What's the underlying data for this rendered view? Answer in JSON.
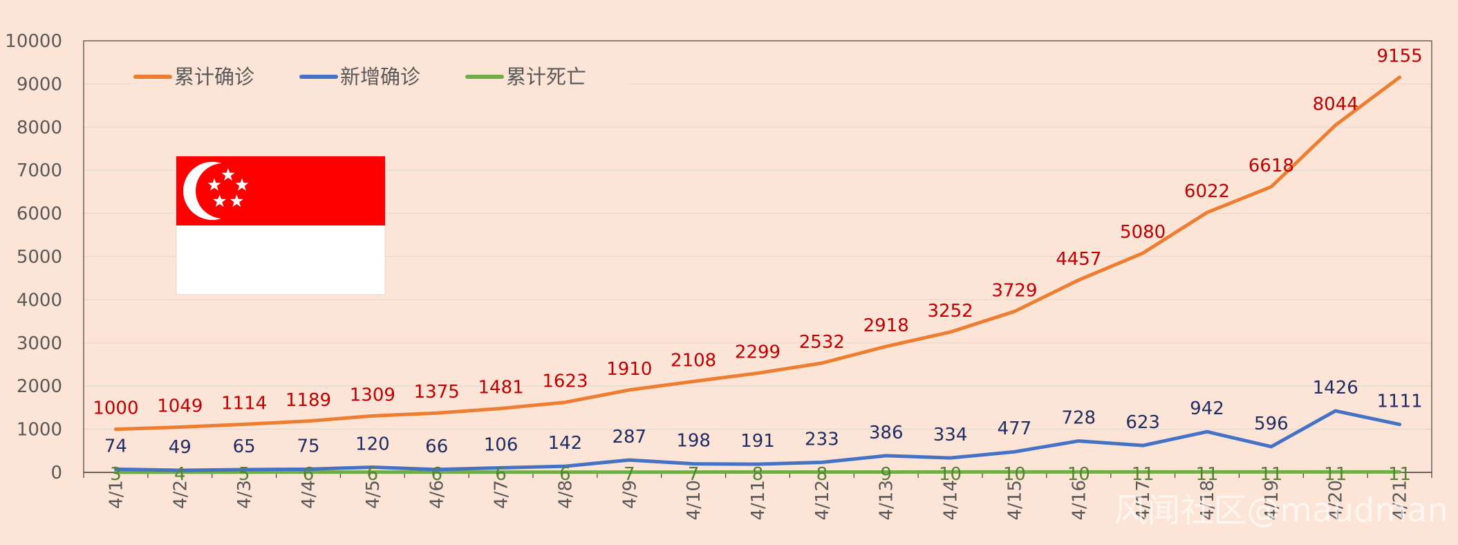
{
  "chart_data": {
    "type": "line",
    "categories": [
      "4/1",
      "4/2",
      "4/3",
      "4/4",
      "4/5",
      "4/6",
      "4/7",
      "4/8",
      "4/9",
      "4/10",
      "4/11",
      "4/12",
      "4/13",
      "4/14",
      "4/15",
      "4/16",
      "4/17",
      "4/18",
      "4/19",
      "4/20",
      "4/21"
    ],
    "series": [
      {
        "name": "累计确诊",
        "color": "#ED7D31",
        "label_color": "#C00000",
        "values": [
          1000,
          1049,
          1114,
          1189,
          1309,
          1375,
          1481,
          1623,
          1910,
          2108,
          2299,
          2532,
          2918,
          3252,
          3729,
          4457,
          5080,
          6022,
          6618,
          8044,
          9155
        ]
      },
      {
        "name": "新增确诊",
        "color": "#4472C4",
        "label_color": "#1F2D63",
        "values": [
          74,
          49,
          65,
          75,
          120,
          66,
          106,
          142,
          287,
          198,
          191,
          233,
          386,
          334,
          477,
          728,
          623,
          942,
          596,
          1426,
          1111
        ]
      },
      {
        "name": "累计死亡",
        "color": "#70AD47",
        "label_color": "#548235",
        "values": [
          3,
          4,
          5,
          6,
          6,
          6,
          6,
          6,
          7,
          7,
          8,
          8,
          9,
          10,
          10,
          10,
          11,
          11,
          11,
          11,
          11
        ]
      }
    ],
    "ylim": [
      0,
      10000
    ],
    "yticks": [
      "0",
      "1000",
      "2000",
      "3000",
      "4000",
      "5000",
      "6000",
      "7000",
      "8000",
      "9000",
      "10000"
    ],
    "grid": "horizontal",
    "legend": "top-left",
    "title": "",
    "xlabel": "",
    "ylabel": ""
  },
  "decor": {
    "flag": "singapore-flag",
    "flag_colors": {
      "red": "#FF0000",
      "white": "#FFFFFF"
    },
    "watermark": "风闻社区@maudman"
  }
}
